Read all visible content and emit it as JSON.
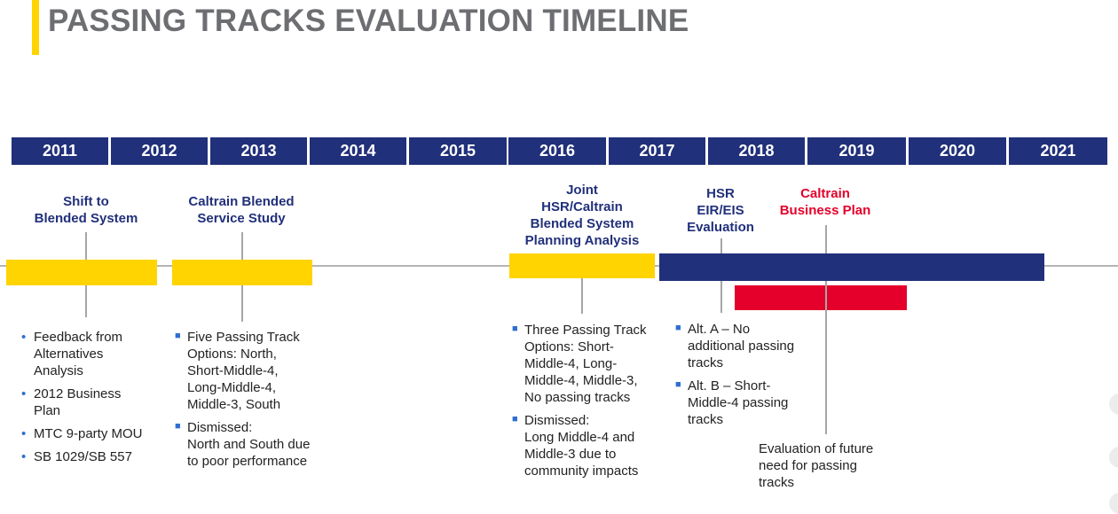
{
  "title": "PASSING TRACKS EVALUATION TIMELINE",
  "colors": {
    "navy": "#21307a",
    "yellow": "#ffd400",
    "red": "#e4002b",
    "gray": "#6d6e71"
  },
  "years": [
    "2011",
    "2012",
    "2013",
    "2014",
    "2015",
    "2016",
    "2017",
    "2018",
    "2019",
    "2020",
    "2021"
  ],
  "milestones": {
    "shift": "Shift to\nBlended System",
    "caltrain_study": "Caltrain Blended\nService Study",
    "joint": "Joint\nHSR/Caltrain\nBlended System\nPlanning Analysis",
    "hsr_eir": "HSR\nEIR/EIS\nEvaluation",
    "business_plan": "Caltrain\nBusiness Plan"
  },
  "lists": {
    "shift": [
      "Feedback from\nAlternatives\nAnalysis",
      "2012 Business\nPlan",
      "MTC 9-party MOU",
      "SB 1029/SB 557"
    ],
    "caltrain_study": [
      "Five Passing Track\nOptions: North,\nShort-Middle-4,\nLong-Middle-4,\nMiddle-3, South",
      "Dismissed:\nNorth and South due\nto poor performance"
    ],
    "joint": [
      "Three Passing Track\nOptions: Short-\nMiddle-4, Long-\nMiddle-4, Middle-3,\nNo passing tracks",
      "Dismissed:\nLong Middle-4 and\nMiddle-3 due to\ncommunity impacts"
    ],
    "hsr_eir": [
      "Alt. A – No\nadditional passing\ntracks",
      "Alt. B – Short-\nMiddle-4 passing\ntracks"
    ]
  },
  "business_plan_note": "Evaluation of future\nneed for passing\ntracks"
}
